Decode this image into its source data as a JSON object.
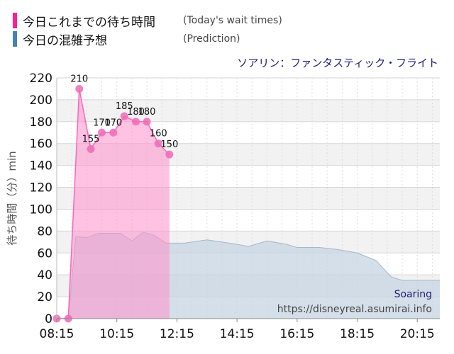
{
  "legend": {
    "items": [
      {
        "label": "今日これまでの待ち時間",
        "sub": "(Today's wait times)",
        "color": "#ff1f8e"
      },
      {
        "label": "今日の混雑予想",
        "sub": "(Prediction)",
        "color": "#4682b4"
      }
    ]
  },
  "chart_data": {
    "type": "area",
    "title": "ソアリン：ファンタスティック・フライト",
    "ylabel": "待ち時間（分）min",
    "xlabel": "",
    "ylim": [
      0,
      220
    ],
    "yticks": [
      0,
      20,
      40,
      60,
      80,
      100,
      120,
      140,
      160,
      180,
      200,
      220
    ],
    "xlim": [
      "08:15",
      "21:00"
    ],
    "xticks": [
      "08:15",
      "10:15",
      "12:15",
      "14:15",
      "16:15",
      "18:15",
      "20:15"
    ],
    "grid": true,
    "watermark": {
      "name": "Soaring",
      "url": "https://disneyreal.asumirai.info"
    },
    "series": [
      {
        "name": "今日これまでの待ち時間",
        "color": "#ff7fc4",
        "points": [
          {
            "x": "08:15",
            "y": 0
          },
          {
            "x": "08:38",
            "y": 0
          },
          {
            "x": "09:00",
            "y": 210
          },
          {
            "x": "09:23",
            "y": 155
          },
          {
            "x": "09:45",
            "y": 170
          },
          {
            "x": "10:08",
            "y": 170
          },
          {
            "x": "10:30",
            "y": 185
          },
          {
            "x": "10:53",
            "y": 180
          },
          {
            "x": "11:15",
            "y": 180
          },
          {
            "x": "11:38",
            "y": 160
          },
          {
            "x": "12:00",
            "y": 150
          }
        ],
        "labels": [
          "",
          "",
          "210",
          "155",
          "170",
          "170",
          "185",
          "180",
          "180",
          "160",
          "150"
        ]
      },
      {
        "name": "今日の混雑予想",
        "color": "#aabfd2",
        "points": [
          {
            "x": "08:15",
            "y": 0
          },
          {
            "x": "08:38",
            "y": 0
          },
          {
            "x": "08:53",
            "y": 75
          },
          {
            "x": "09:15",
            "y": 74
          },
          {
            "x": "09:38",
            "y": 78
          },
          {
            "x": "10:00",
            "y": 78
          },
          {
            "x": "10:23",
            "y": 78
          },
          {
            "x": "10:45",
            "y": 71
          },
          {
            "x": "11:08",
            "y": 79
          },
          {
            "x": "11:30",
            "y": 76
          },
          {
            "x": "11:53",
            "y": 69
          },
          {
            "x": "12:30",
            "y": 69
          },
          {
            "x": "13:15",
            "y": 72
          },
          {
            "x": "14:00",
            "y": 69
          },
          {
            "x": "14:38",
            "y": 66
          },
          {
            "x": "15:15",
            "y": 71
          },
          {
            "x": "15:53",
            "y": 68
          },
          {
            "x": "16:15",
            "y": 65
          },
          {
            "x": "17:00",
            "y": 65
          },
          {
            "x": "17:38",
            "y": 63
          },
          {
            "x": "18:15",
            "y": 60
          },
          {
            "x": "18:53",
            "y": 53
          },
          {
            "x": "19:23",
            "y": 38
          },
          {
            "x": "19:45",
            "y": 35
          },
          {
            "x": "20:23",
            "y": 35
          },
          {
            "x": "21:00",
            "y": 35
          }
        ]
      }
    ]
  }
}
